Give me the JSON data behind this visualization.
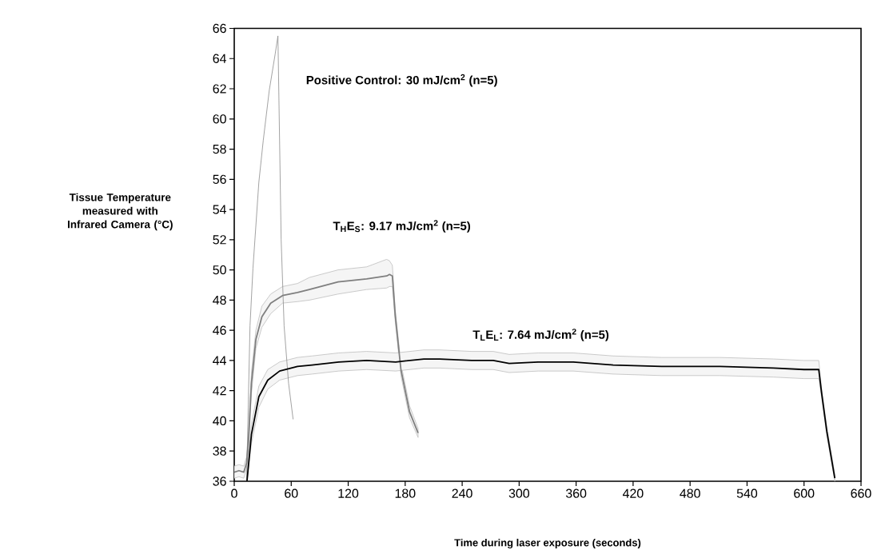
{
  "chart_data": {
    "type": "line",
    "xlabel": "Time during laser exposure (seconds)",
    "ylabel": "Tissue Temperature measured with Infrared Camera (°C)",
    "xlim": [
      0,
      660
    ],
    "ylim": [
      36,
      66
    ],
    "xticks": [
      0,
      60,
      120,
      180,
      240,
      300,
      360,
      420,
      480,
      540,
      600,
      660
    ],
    "yticks": [
      36,
      38,
      40,
      42,
      44,
      46,
      48,
      50,
      52,
      54,
      56,
      58,
      60,
      62,
      64,
      66
    ],
    "grid": false,
    "marker": "none",
    "line_style": "solid",
    "annotations": [
      "Positive Control: 30 mJ/cm$^{2}$ (n=5)",
      "T$_{H}$E$_{S}$: 9.17 mJ/cm$^{2}$ (n=5)",
      "T$_{L}$E$_{L}$: 7.64 mJ/cm$^{2}$ (n=5)"
    ],
    "series": [
      {
        "color": "#8c8c8c",
        "x": [
          13,
          16.6,
          19.7,
          25.9,
          30.6,
          36.9,
          43.1,
          46,
          49.4,
          52.5,
          57.2,
          62
        ],
        "values": [
          36,
          46.3,
          50.1,
          55.8,
          58.6,
          61.9,
          64.3,
          65.5,
          52.0,
          46.3,
          42.5,
          40.1
        ]
      },
      {
        "color": "#7f7f7f",
        "x": [
          0,
          5,
          10,
          13,
          15,
          18.1,
          22.8,
          29.1,
          38.4,
          50.9,
          66.6,
          79.2,
          109.3,
          139.4,
          160.5,
          163.5,
          166.5,
          169.5,
          175.5,
          184.6,
          193.6
        ],
        "values": [
          36.6,
          36.7,
          36.6,
          37.2,
          38.7,
          42.5,
          45.4,
          46.9,
          47.8,
          48.3,
          48.5,
          48.7,
          49.2,
          49.4,
          49.6,
          49.7,
          49.6,
          47.0,
          43.4,
          40.6,
          39.2
        ],
        "upper": [
          37.0,
          37.1,
          37.0,
          37.6,
          39.3,
          43.2,
          46.0,
          47.6,
          48.4,
          48.9,
          49.1,
          49.5,
          50.0,
          50.2,
          50.7,
          50.6,
          50.3,
          47.4,
          43.8,
          41.0,
          39.5
        ],
        "lower": [
          36.2,
          36.3,
          36.2,
          36.8,
          38.2,
          41.8,
          44.8,
          46.2,
          47.1,
          47.8,
          47.9,
          48.0,
          48.4,
          48.7,
          48.8,
          48.9,
          48.9,
          46.6,
          43.0,
          40.2,
          38.9
        ]
      },
      {
        "color": "#000000",
        "x": [
          13.4,
          18.1,
          25.9,
          35.3,
          47.8,
          66.6,
          82,
          110,
          139.4,
          170,
          199.6,
          216.4,
          250,
          272.7,
          289.5,
          320,
          357,
          399,
          450,
          511.5,
          567.8,
          600,
          615.5,
          618.4,
          624,
          632.4
        ],
        "values": [
          36,
          39.1,
          41.6,
          42.7,
          43.3,
          43.6,
          43.7,
          43.9,
          44.0,
          43.9,
          44.1,
          44.1,
          44.0,
          44.0,
          43.8,
          43.9,
          43.9,
          43.7,
          43.6,
          43.6,
          43.5,
          43.4,
          43.4,
          41.9,
          39.3,
          36.2
        ],
        "upper": [
          36.4,
          39.8,
          42.3,
          43.4,
          43.9,
          44.2,
          44.3,
          44.5,
          44.6,
          44.5,
          44.7,
          44.7,
          44.6,
          44.6,
          44.4,
          44.5,
          44.5,
          44.3,
          44.2,
          44.2,
          44.1,
          44.0,
          44.0,
          42.2,
          39.6,
          36.5
        ],
        "lower": [
          36.0,
          38.5,
          40.9,
          42.1,
          42.7,
          43.0,
          43.1,
          43.3,
          43.4,
          43.3,
          43.5,
          43.5,
          43.4,
          43.4,
          43.2,
          43.3,
          43.3,
          43.1,
          43.0,
          43.0,
          42.9,
          42.8,
          42.8,
          41.6,
          39.0,
          36.0
        ]
      }
    ]
  }
}
